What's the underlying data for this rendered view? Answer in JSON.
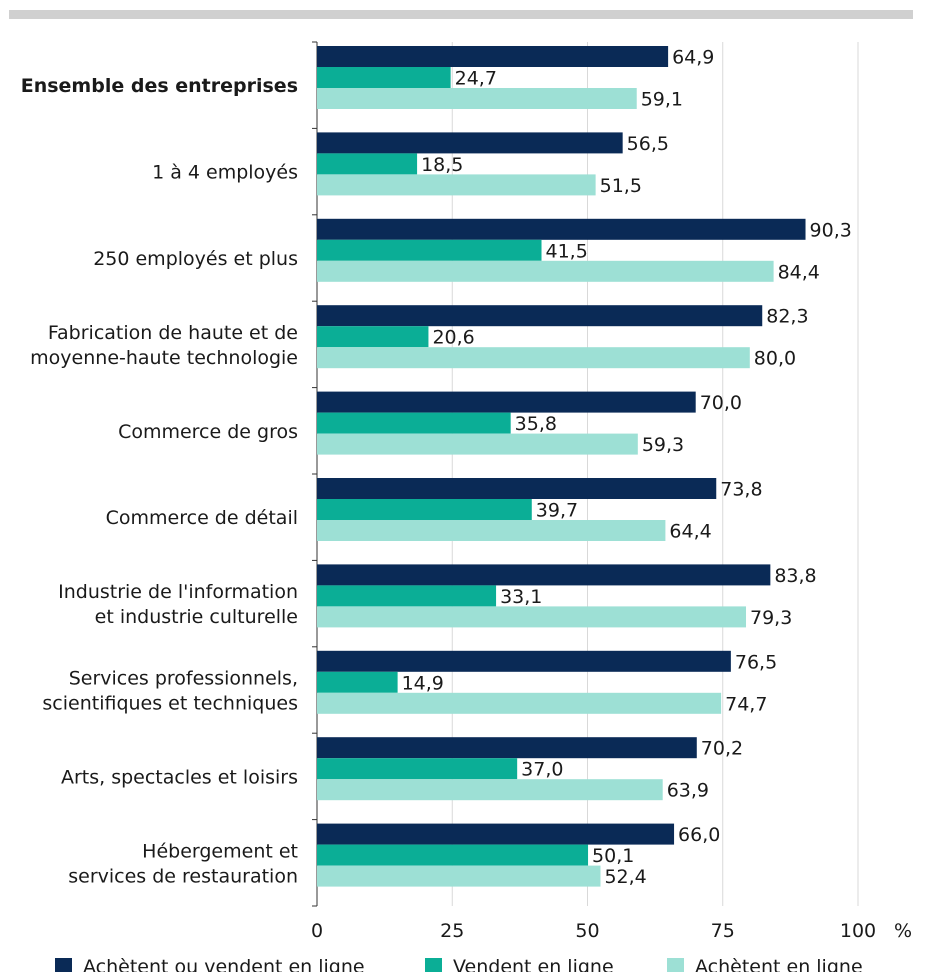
{
  "chart_data": {
    "type": "bar",
    "orientation": "horizontal",
    "categories": [
      [
        "Ensemble des entreprises"
      ],
      [
        "1 à 4 employés"
      ],
      [
        "250 employés et plus"
      ],
      [
        "Fabrication de haute et de",
        "moyenne-haute technologie"
      ],
      [
        "Commerce de gros"
      ],
      [
        "Commerce de détail"
      ],
      [
        "Industrie de l'information",
        "et industrie culturelle"
      ],
      [
        "Services professionnels,",
        "scientifiques et techniques"
      ],
      [
        "Arts, spectacles et loisirs"
      ],
      [
        "Hébergement et",
        "services de restauration"
      ]
    ],
    "bold_categories": [
      0
    ],
    "series": [
      {
        "name": "Achètent ou vendent en ligne",
        "color": "#0a2a56",
        "values": [
          64.9,
          56.5,
          90.3,
          82.3,
          70.0,
          73.8,
          83.8,
          76.5,
          70.2,
          66.0
        ],
        "labels": [
          "64,9",
          "56,5",
          "90,3",
          "82,3",
          "70,0",
          "73,8",
          "83,8",
          "76,5",
          "70,2",
          "66,0"
        ]
      },
      {
        "name": "Vendent en ligne",
        "color": "#0bae96",
        "values": [
          24.7,
          18.5,
          41.5,
          20.6,
          35.8,
          39.7,
          33.1,
          14.9,
          37.0,
          50.1
        ],
        "labels": [
          "24,7",
          "18,5",
          "41,5",
          "20,6",
          "35,8",
          "39,7",
          "33,1",
          "14,9",
          "37,0",
          "50,1"
        ]
      },
      {
        "name": "Achètent en ligne",
        "color": "#9de0d5",
        "values": [
          59.1,
          51.5,
          84.4,
          80.0,
          59.3,
          64.4,
          79.3,
          74.7,
          63.9,
          52.4
        ],
        "labels": [
          "59,1",
          "51,5",
          "84,4",
          "80,0",
          "59,3",
          "64,4",
          "79,3",
          "74,7",
          "63,9",
          "52,4"
        ]
      }
    ],
    "xlim": [
      0,
      100
    ],
    "x_ticks": [
      0,
      25,
      50,
      75,
      100
    ],
    "x_tick_labels": [
      "0",
      "25",
      "50",
      "75",
      "100"
    ],
    "x_unit": "%",
    "grid": "vertical",
    "legend_position": "bottom"
  }
}
